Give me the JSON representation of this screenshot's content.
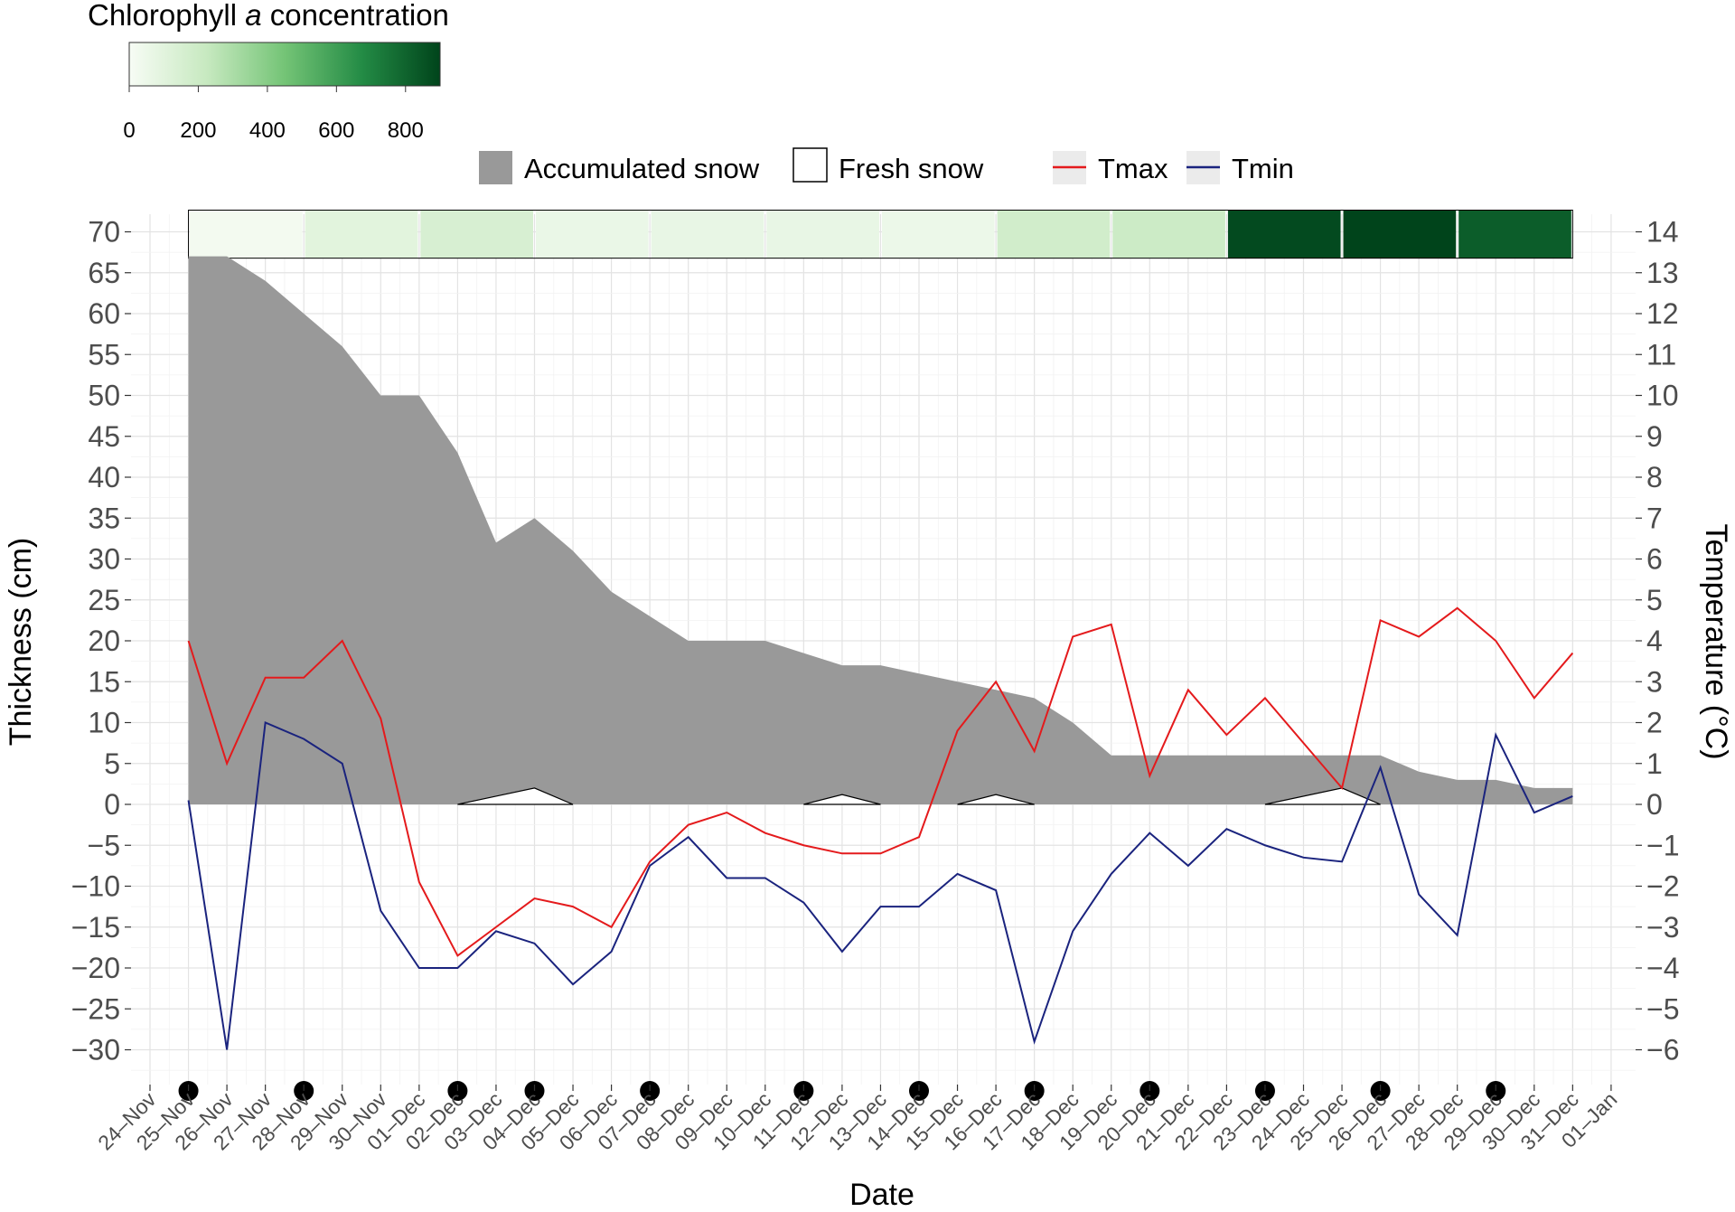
{
  "legend": {
    "colorbar_title_prefix": "Chlorophyll ",
    "colorbar_title_italic": "a",
    "colorbar_title_suffix": " concentration",
    "colorbar_ticks": [
      "0",
      "200",
      "400",
      "600",
      "800"
    ],
    "colorbar_range": [
      0,
      900
    ],
    "colorbar_colors": [
      "#f7fcf5",
      "#c7e9c0",
      "#74c476",
      "#238b45",
      "#00441b"
    ],
    "accumulated_label": "Accumulated snow",
    "fresh_label": "Fresh snow",
    "tmax_label": "Tmax",
    "tmin_label": "Tmin"
  },
  "chart_data": {
    "type": "area",
    "xlabel": "Date",
    "ylabel_left": "Thickness (cm)",
    "ylabel_right": "Temperature (°C)",
    "ylim_left": [
      -35,
      72
    ],
    "ylim_right": [
      -7,
      14.4
    ],
    "x_ticks": [
      "24–Nov",
      "25–Nov",
      "26–Nov",
      "27–Nov",
      "28–Nov",
      "29–Nov",
      "30–Nov",
      "01–Dec",
      "02–Dec",
      "03–Dec",
      "04–Dec",
      "05–Dec",
      "06–Dec",
      "07–Dec",
      "08–Dec",
      "09–Dec",
      "10–Dec",
      "11–Dec",
      "12–Dec",
      "13–Dec",
      "14–Dec",
      "15–Dec",
      "16–Dec",
      "17–Dec",
      "18–Dec",
      "19–Dec",
      "20–Dec",
      "21–Dec",
      "22–Dec",
      "23–Dec",
      "24–Dec",
      "25–Dec",
      "26–Dec",
      "27–Dec",
      "28–Dec",
      "29–Dec",
      "30–Dec",
      "31–Dec",
      "01–Jan"
    ],
    "y_ticks_left": [
      "70",
      "65",
      "60",
      "55",
      "50",
      "45",
      "40",
      "35",
      "30",
      "25",
      "20",
      "15",
      "10",
      "5",
      "0",
      "−5",
      "−10",
      "−15",
      "−20",
      "−25",
      "−30"
    ],
    "y_ticks_right": [
      "14",
      "13",
      "12",
      "11",
      "10",
      "9",
      "8",
      "7",
      "6",
      "5",
      "4",
      "3",
      "2",
      "1",
      "0",
      "−1",
      "−2",
      "−3",
      "−4",
      "−5",
      "−6"
    ],
    "grid": true,
    "legend_position": "top",
    "accumulated_snow": {
      "name": "Accumulated snow",
      "color": "#999999",
      "x": [
        "25–Nov",
        "26–Nov",
        "27–Nov",
        "28–Nov",
        "29–Nov",
        "30–Nov",
        "01–Dec",
        "02–Dec",
        "03–Dec",
        "04–Dec",
        "05–Dec",
        "06–Dec",
        "07–Dec",
        "08–Dec",
        "09–Dec",
        "10–Dec",
        "11–Dec",
        "12–Dec",
        "13–Dec",
        "14–Dec",
        "15–Dec",
        "16–Dec",
        "17–Dec",
        "18–Dec",
        "19–Dec",
        "20–Dec",
        "21–Dec",
        "22–Dec",
        "23–Dec",
        "24–Dec",
        "25–Dec",
        "26–Dec",
        "27–Dec",
        "28–Dec",
        "29–Dec",
        "30–Dec",
        "31–Dec"
      ],
      "values": [
        67,
        67,
        64,
        60,
        56,
        50,
        50,
        43,
        32,
        35,
        31,
        26,
        23,
        20,
        20,
        20,
        18.5,
        17,
        17,
        16,
        15,
        14,
        13,
        10,
        6,
        6,
        6,
        6,
        6,
        6,
        6,
        6,
        4,
        3,
        3,
        2,
        2
      ]
    },
    "fresh_snow": {
      "name": "Fresh snow",
      "events": [
        {
          "x": [
            "02–Dec",
            "03–Dec",
            "04–Dec",
            "05–Dec"
          ],
          "values": [
            0,
            1,
            2,
            0
          ]
        },
        {
          "x": [
            "11–Dec",
            "12–Dec",
            "13–Dec"
          ],
          "values": [
            0,
            1.2,
            0
          ]
        },
        {
          "x": [
            "15–Dec",
            "16–Dec",
            "17–Dec"
          ],
          "values": [
            0,
            1.2,
            0
          ]
        },
        {
          "x": [
            "23–Dec",
            "25–Dec",
            "26–Dec"
          ],
          "values": [
            0,
            2,
            0
          ]
        }
      ]
    },
    "series": [
      {
        "name": "Tmax",
        "color": "#e41a1c",
        "x": [
          "25–Nov",
          "26–Nov",
          "27–Nov",
          "28–Nov",
          "29–Nov",
          "30–Nov",
          "01–Dec",
          "02–Dec",
          "03–Dec",
          "04–Dec",
          "05–Dec",
          "06–Dec",
          "07–Dec",
          "08–Dec",
          "09–Dec",
          "10–Dec",
          "11–Dec",
          "12–Dec",
          "13–Dec",
          "14–Dec",
          "15–Dec",
          "16–Dec",
          "17–Dec",
          "18–Dec",
          "19–Dec",
          "20–Dec",
          "21–Dec",
          "22–Dec",
          "23–Dec",
          "24–Dec",
          "25–Dec",
          "26–Dec",
          "27–Dec",
          "28–Dec",
          "29–Dec",
          "30–Dec",
          "31–Dec"
        ],
        "values": [
          4,
          1,
          3.1,
          3.1,
          4,
          2.1,
          -1.9,
          -3.7,
          -3,
          -2.3,
          -2.5,
          -3,
          -1.4,
          -0.5,
          -0.2,
          -0.7,
          -1,
          -1.2,
          -1.2,
          -0.8,
          1.8,
          3,
          1.3,
          4.1,
          4.4,
          0.7,
          2.8,
          1.7,
          2.6,
          1.5,
          0.4,
          4.5,
          4.1,
          4.8,
          4,
          2.6,
          3.7
        ]
      },
      {
        "name": "Tmin",
        "color": "#1a237e",
        "x": [
          "25–Nov",
          "26–Nov",
          "27–Nov",
          "28–Nov",
          "29–Nov",
          "30–Nov",
          "01–Dec",
          "02–Dec",
          "03–Dec",
          "04–Dec",
          "05–Dec",
          "06–Dec",
          "07–Dec",
          "08–Dec",
          "09–Dec",
          "10–Dec",
          "11–Dec",
          "12–Dec",
          "13–Dec",
          "14–Dec",
          "15–Dec",
          "16–Dec",
          "17–Dec",
          "18–Dec",
          "19–Dec",
          "20–Dec",
          "21–Dec",
          "22–Dec",
          "23–Dec",
          "24–Dec",
          "25–Dec",
          "26–Dec",
          "27–Dec",
          "28–Dec",
          "29–Dec",
          "30–Dec",
          "31–Dec"
        ],
        "values": [
          0.1,
          -6,
          2,
          1.6,
          1,
          -2.6,
          -4,
          -4,
          -3.1,
          -3.4,
          -4.4,
          -3.6,
          -1.5,
          -0.8,
          -1.8,
          -1.8,
          -2.4,
          -3.6,
          -2.5,
          -2.5,
          -1.7,
          -2.1,
          -5.8,
          -3.1,
          -1.7,
          -0.7,
          -1.5,
          -0.6,
          -1,
          -1.3,
          -1.4,
          0.9,
          -2.2,
          -3.2,
          1.7,
          -0.2,
          0.2
        ]
      }
    ],
    "chlorophyll_bar": {
      "name": "Chlorophyll a concentration",
      "segments": [
        {
          "start": "25–Nov",
          "end": "28–Nov",
          "value": 20
        },
        {
          "start": "28–Nov",
          "end": "01–Dec",
          "value": 100
        },
        {
          "start": "01–Dec",
          "end": "04–Dec",
          "value": 150
        },
        {
          "start": "04–Dec",
          "end": "07–Dec",
          "value": 60
        },
        {
          "start": "07–Dec",
          "end": "10–Dec",
          "value": 70
        },
        {
          "start": "10–Dec",
          "end": "13–Dec",
          "value": 70
        },
        {
          "start": "13–Dec",
          "end": "16–Dec",
          "value": 50
        },
        {
          "start": "16–Dec",
          "end": "19–Dec",
          "value": 180
        },
        {
          "start": "19–Dec",
          "end": "22–Dec",
          "value": 200
        },
        {
          "start": "22–Dec",
          "end": "25–Dec",
          "value": 880
        },
        {
          "start": "25–Dec",
          "end": "28–Dec",
          "value": 900
        },
        {
          "start": "28–Dec",
          "end": "31–Dec",
          "value": 820
        }
      ]
    },
    "sampling_days": [
      "25–Nov",
      "28–Nov",
      "02–Dec",
      "04–Dec",
      "07–Dec",
      "11–Dec",
      "14–Dec",
      "17–Dec",
      "20–Dec",
      "23–Dec",
      "26–Dec",
      "29–Dec"
    ]
  }
}
